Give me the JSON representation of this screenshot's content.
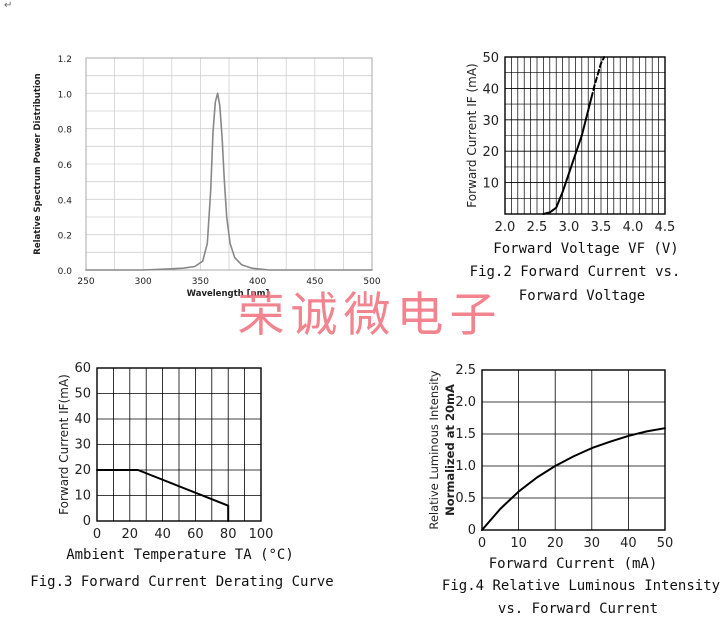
{
  "corner_mark": "↵",
  "watermark": "荣诚微电子",
  "chart_data": [
    {
      "type": "line",
      "ylabel": "Relative Spectrum Power Distribution",
      "xlabel": "Wavelength [nm]",
      "xlim": [
        250,
        500
      ],
      "ylim": [
        0,
        1.2
      ],
      "xticks": [
        "250",
        "300",
        "350",
        "400",
        "450",
        "500"
      ],
      "yticks": [
        "0.0",
        "0.2",
        "0.4",
        "0.6",
        "0.8",
        "1.0",
        "1.2"
      ],
      "series": [
        {
          "x": [
            250,
            300,
            320,
            335,
            345,
            352,
            356,
            359,
            361,
            363,
            365,
            367,
            369,
            371,
            373,
            376,
            380,
            386,
            395,
            410,
            450,
            500
          ],
          "y": [
            0.0,
            0.0,
            0.005,
            0.01,
            0.02,
            0.05,
            0.15,
            0.45,
            0.78,
            0.95,
            1.0,
            0.93,
            0.75,
            0.5,
            0.3,
            0.15,
            0.07,
            0.03,
            0.01,
            0.0,
            0.0,
            0.0
          ]
        }
      ],
      "grid": true
    },
    {
      "type": "line",
      "ylabel": "Forward Current IF (mA)",
      "xlabel": "Forward Voltage VF (V)",
      "caption": [
        "Fig.2 Forward Current vs.",
        "Forward Voltage"
      ],
      "xlim": [
        2.0,
        4.5
      ],
      "ylim": [
        0,
        50
      ],
      "xticks": [
        "2.0",
        "2.5",
        "3.0",
        "3.5",
        "4.0",
        "4.5"
      ],
      "yticks": [
        "10",
        "20",
        "30",
        "40",
        "50"
      ],
      "series": [
        {
          "x": [
            2.6,
            2.7,
            2.8,
            2.9,
            3.0,
            3.1,
            3.2,
            3.3,
            3.35
          ],
          "y": [
            0.0,
            0.5,
            2.0,
            7.0,
            13.0,
            19.0,
            25.0,
            33.0,
            37.0
          ]
        },
        {
          "dashed": true,
          "x": [
            3.35,
            3.4,
            3.45,
            3.5,
            3.55
          ],
          "y": [
            37.0,
            41.0,
            44.5,
            48.0,
            50.0
          ]
        }
      ],
      "grid": true
    },
    {
      "type": "line",
      "ylabel": "Forward Current IF(mA)",
      "xlabel": "Ambient Temperature TA (°C)",
      "caption": [
        "Fig.3 Forward Current Derating Curve"
      ],
      "xlim": [
        0,
        100
      ],
      "ylim": [
        0,
        60
      ],
      "xticks": [
        "0",
        "20",
        "40",
        "60",
        "80",
        "100"
      ],
      "yticks": [
        "0",
        "10",
        "20",
        "30",
        "40",
        "50",
        "60"
      ],
      "series": [
        {
          "x": [
            0,
            25,
            80,
            80
          ],
          "y": [
            20,
            20,
            6,
            0
          ]
        }
      ],
      "grid": true
    },
    {
      "type": "line",
      "ylabel": [
        "Relative Luminous Intensity",
        "Normalized at 20mA"
      ],
      "xlabel": "Forward Current (mA)",
      "caption": [
        "Fig.4 Relative Luminous Intensity",
        "vs. Forward Current"
      ],
      "xlim": [
        0,
        50
      ],
      "ylim": [
        0,
        2.5
      ],
      "xticks": [
        "0",
        "10",
        "20",
        "30",
        "40",
        "50"
      ],
      "yticks": [
        "0",
        "0.5",
        "1.0",
        "1.5",
        "2.0",
        "2.5"
      ],
      "series": [
        {
          "x": [
            0,
            5,
            10,
            15,
            20,
            25,
            30,
            35,
            40,
            45,
            50
          ],
          "y": [
            0,
            0.33,
            0.6,
            0.82,
            1.0,
            1.15,
            1.28,
            1.38,
            1.47,
            1.54,
            1.59
          ]
        }
      ],
      "grid": true
    }
  ]
}
